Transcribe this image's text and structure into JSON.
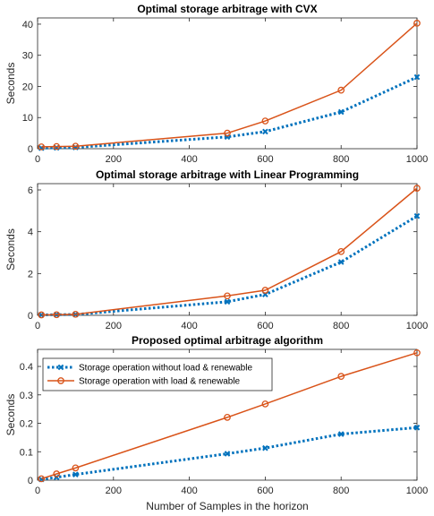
{
  "chart_data": [
    {
      "type": "line",
      "title": "Optimal storage arbitrage with CVX",
      "xlabel": "",
      "ylabel": "Seconds",
      "xlim": [
        0,
        1000
      ],
      "ylim": [
        0,
        42
      ],
      "xticks": [
        0,
        200,
        400,
        600,
        800,
        1000
      ],
      "yticks": [
        0,
        10,
        20,
        30,
        40
      ],
      "x": [
        10,
        50,
        100,
        500,
        600,
        800,
        1000
      ],
      "grid": false,
      "series": [
        {
          "key": "without",
          "values": [
            0.2,
            0.3,
            0.4,
            3.8,
            5.5,
            11.8,
            23.0
          ],
          "color": "#0072BD",
          "marker": "x",
          "style": "dotted"
        },
        {
          "key": "with",
          "values": [
            0.6,
            0.7,
            0.8,
            5.0,
            8.9,
            18.8,
            40.3
          ],
          "color": "#D95319",
          "marker": "o",
          "style": "solid"
        }
      ]
    },
    {
      "type": "line",
      "title": "Optimal storage arbitrage with Linear Programming",
      "xlabel": "",
      "ylabel": "Seconds",
      "xlim": [
        0,
        1000
      ],
      "ylim": [
        0,
        6.3
      ],
      "xticks": [
        0,
        200,
        400,
        600,
        800,
        1000
      ],
      "yticks": [
        0,
        2,
        4,
        6
      ],
      "x": [
        10,
        50,
        100,
        500,
        600,
        800,
        1000
      ],
      "grid": false,
      "series": [
        {
          "key": "without",
          "values": [
            0.02,
            0.03,
            0.04,
            0.65,
            1.0,
            2.55,
            4.75
          ],
          "color": "#0072BD",
          "marker": "x",
          "style": "dotted"
        },
        {
          "key": "with",
          "values": [
            0.02,
            0.03,
            0.05,
            0.93,
            1.2,
            3.05,
            6.08
          ],
          "color": "#D95319",
          "marker": "o",
          "style": "solid"
        }
      ]
    },
    {
      "type": "line",
      "title": "Proposed optimal arbitrage algorithm",
      "xlabel": "Number of Samples in the horizon",
      "ylabel": "Seconds",
      "xlim": [
        0,
        1000
      ],
      "ylim": [
        0,
        0.46
      ],
      "xticks": [
        0,
        200,
        400,
        600,
        800,
        1000
      ],
      "yticks": [
        0,
        0.1,
        0.2,
        0.3,
        0.4
      ],
      "x": [
        10,
        50,
        100,
        500,
        600,
        800,
        1000
      ],
      "grid": false,
      "legend": "top-left",
      "series": [
        {
          "key": "without",
          "name": "Storage operation without load & renewable",
          "values": [
            0.003,
            0.01,
            0.02,
            0.093,
            0.113,
            0.162,
            0.185
          ],
          "color": "#0072BD",
          "marker": "x",
          "style": "dotted"
        },
        {
          "key": "with",
          "name": "Storage operation with load & renewable",
          "values": [
            0.005,
            0.022,
            0.043,
            0.221,
            0.268,
            0.365,
            0.448
          ],
          "color": "#D95319",
          "marker": "o",
          "style": "solid"
        }
      ]
    }
  ]
}
